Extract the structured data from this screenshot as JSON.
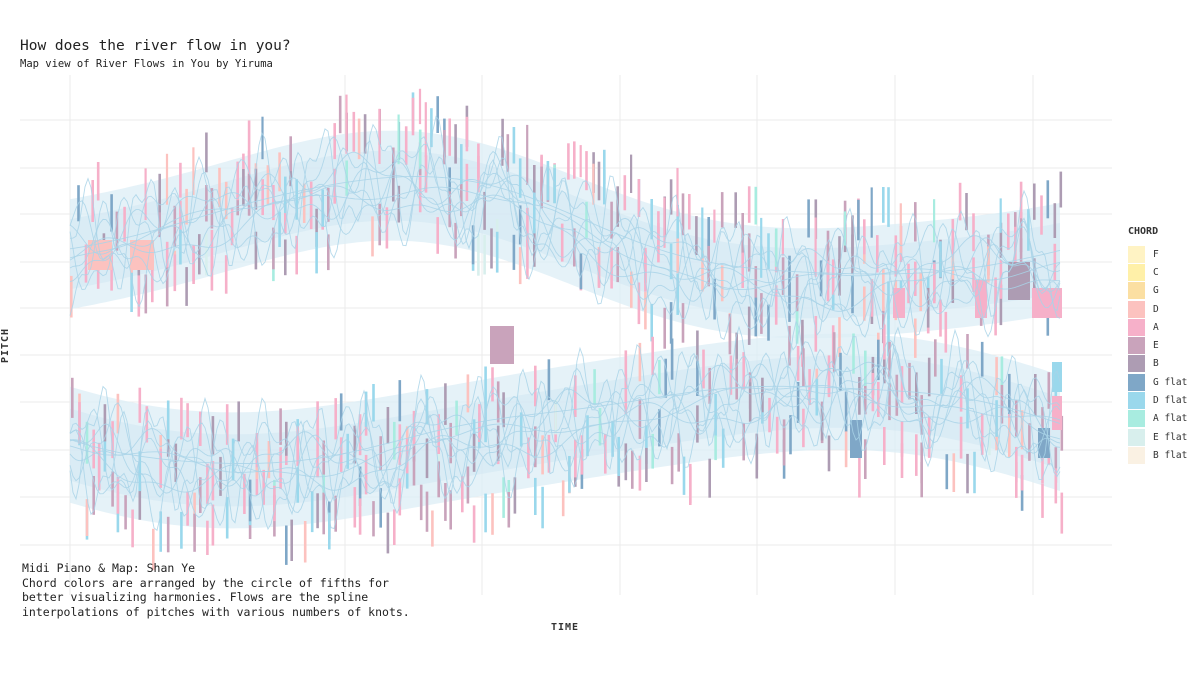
{
  "title": "How does the river flow in you?",
  "subtitle": "Map view of River Flows in You by Yiruma",
  "caption": {
    "line1": "Midi Piano & Map: Shan Ye",
    "line2": "Chord colors are arranged by the circle of fifths for",
    "line3": "better visualizing harmonies. Flows are the spline",
    "line4": "interpolations of pitches with various numbers of knots."
  },
  "chart_data": {
    "type": "heatmap",
    "xlabel": "TIME",
    "ylabel": "PITCH",
    "grid": true,
    "legend": {
      "title": "CHORD",
      "placement": "right",
      "entries": [
        {
          "name": "F",
          "color": "#fff3c4"
        },
        {
          "name": "C",
          "color": "#fff0a8"
        },
        {
          "name": "G",
          "color": "#fbdfa2"
        },
        {
          "name": "D",
          "color": "#fcc2bf"
        },
        {
          "name": "A",
          "color": "#f6b0c9"
        },
        {
          "name": "E",
          "color": "#c9a3bb"
        },
        {
          "name": "B",
          "color": "#ad9cb3"
        },
        {
          "name": "G flat",
          "color": "#7fa7c7"
        },
        {
          "name": "D flat",
          "color": "#9ad8ec"
        },
        {
          "name": "A flat",
          "color": "#a8ece0"
        },
        {
          "name": "E flat",
          "color": "#d8efed"
        },
        {
          "name": "B flat",
          "color": "#faf1e3"
        }
      ]
    },
    "flow_color": "#a9d3e8"
  }
}
